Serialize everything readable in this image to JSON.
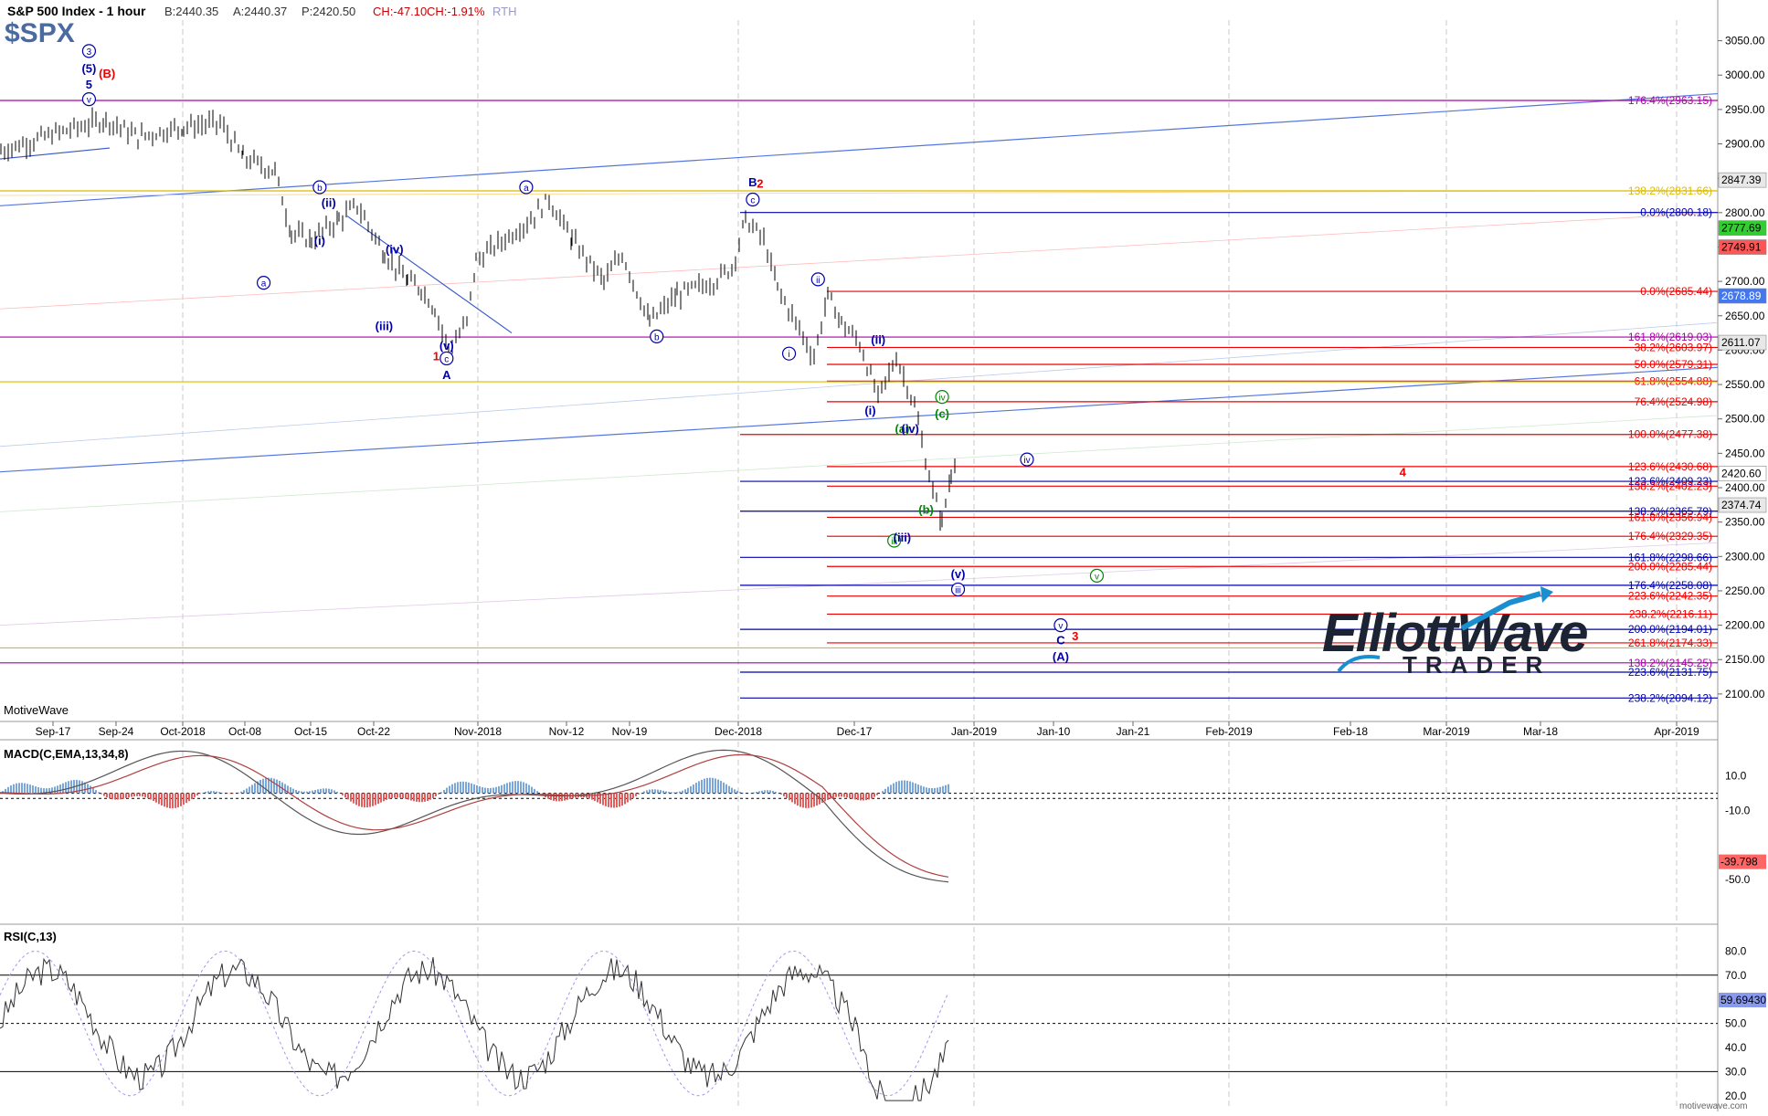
{
  "header": {
    "title": "S&P 500 Index - 1 hour",
    "symbol": "$SPX",
    "bid": "B:2440.35",
    "ask": "A:2440.37",
    "price": "P:2420.50",
    "change": "CH:-47.10",
    "change_pct": "CH:-1.91%",
    "session": "RTH"
  },
  "watermark": "MotiveWave",
  "footer_site": "motivewave.com",
  "logo": {
    "line1": "ElliottWave",
    "line2": "TRADER"
  },
  "colors": {
    "down": "#cc0000",
    "blue": "#0000aa",
    "red": "#ee0000",
    "purple": "#aa00aa",
    "gold": "#ddbb00",
    "green": "#008800",
    "bg": "#ffffff",
    "grid": "#c8c8c8"
  },
  "time_axis": [
    "Sep-17",
    "Sep-24",
    "Oct-2018",
    "Oct-08",
    "Oct-15",
    "Oct-22",
    "Nov-2018",
    "Nov-12",
    "Nov-19",
    "Dec-2018",
    "Dec-17",
    "Jan-2019",
    "Jan-10",
    "Jan-21",
    "Feb-2019",
    "Feb-18",
    "Mar-2019",
    "Mar-18",
    "Apr-2019"
  ],
  "chart_data": [
    {
      "type": "bar",
      "title": "S&P 500 Index - 1 hour",
      "ylim": [
        2060,
        3080
      ],
      "y_ticks": [
        "3050.00",
        "3000.00",
        "2950.00",
        "2900.00",
        "2850.00",
        "2800.00",
        "2750.00",
        "2700.00",
        "2650.00",
        "2600.00",
        "2550.00",
        "2500.00",
        "2450.00",
        "2400.00",
        "2350.00",
        "2300.00",
        "2250.00",
        "2200.00",
        "2150.00",
        "2100.00"
      ],
      "price_tags": [
        {
          "value": 2847.39,
          "label": "2847.39",
          "bg": "#e8e8e8",
          "fg": "#000000"
        },
        {
          "value": 2777.69,
          "label": "2777.69",
          "bg": "#33cc33",
          "fg": "#000000"
        },
        {
          "value": 2749.91,
          "label": "2749.91",
          "bg": "#ff5555",
          "fg": "#000000"
        },
        {
          "value": 2678.89,
          "label": "2678.89",
          "bg": "#4477ee",
          "fg": "#ffffff"
        },
        {
          "value": 2611.07,
          "label": "2611.07",
          "bg": "#e8e8e8",
          "fg": "#000000"
        },
        {
          "value": 2420.6,
          "label": "2420.60",
          "bg": "#ffffff",
          "fg": "#000000"
        },
        {
          "value": 2374.74,
          "label": "2374.74",
          "bg": "#e8e8e8",
          "fg": "#000000"
        }
      ],
      "fib_levels": [
        {
          "value": 2963.15,
          "label": "176.4%(2963.15)",
          "color": "#aa00aa"
        },
        {
          "value": 2831.66,
          "label": "138.2%(2831.66)",
          "color": "#ddbb00"
        },
        {
          "value": 2800.18,
          "label": "0.0%(2800.18)",
          "color": "#0000aa"
        },
        {
          "value": 2685.44,
          "label": "0.0%(2685.44)",
          "color": "#ee0000"
        },
        {
          "value": 2619.03,
          "label": "161.8%(2619.03)",
          "color": "#aa00aa"
        },
        {
          "value": 2603.97,
          "label": "38.2%(2603.97)",
          "color": "#ee0000"
        },
        {
          "value": 2579.31,
          "label": "50.0%(2579.31)",
          "color": "#ee0000"
        },
        {
          "value": 2554.88,
          "label": "61.8%(2554.88)",
          "color": "#ee0000"
        },
        {
          "value": 2524.98,
          "label": "76.4%(2524.98)",
          "color": "#ee0000"
        },
        {
          "value": 2477.38,
          "label": "100.0%(2477.38)",
          "color": "#ee0000"
        },
        {
          "value": 2430.68,
          "label": "123.6%(2430.68)",
          "color": "#ee0000"
        },
        {
          "value": 2409.23,
          "label": "123.6%(2409.23)",
          "color": "#0000aa"
        },
        {
          "value": 2402.23,
          "label": "138.2%(2402.23)",
          "color": "#ee0000"
        },
        {
          "value": 2365.79,
          "label": "138.2%(2365.79)",
          "color": "#0000aa"
        },
        {
          "value": 2356.94,
          "label": "161.8%(2356.94)",
          "color": "#ee0000"
        },
        {
          "value": 2329.35,
          "label": "176.4%(2329.35)",
          "color": "#ee0000"
        },
        {
          "value": 2298.66,
          "label": "161.8%(2298.66)",
          "color": "#0000aa"
        },
        {
          "value": 2285.44,
          "label": "200.0%(2285.44)",
          "color": "#ee0000"
        },
        {
          "value": 2258.08,
          "label": "176.4%(2258.08)",
          "color": "#0000aa"
        },
        {
          "value": 2242.35,
          "label": "223.6%(2242.35)",
          "color": "#ee0000"
        },
        {
          "value": 2216.11,
          "label": "238.2%(2216.11)",
          "color": "#ee0000"
        },
        {
          "value": 2194.01,
          "label": "200.0%(2194.01)",
          "color": "#0000aa"
        },
        {
          "value": 2174.33,
          "label": "261.8%(2174.33)",
          "color": "#ee0000"
        },
        {
          "value": 2145.25,
          "label": "138.2%(2145.25)",
          "color": "#aa00aa"
        },
        {
          "value": 2131.75,
          "label": "223.6%(2131.75)",
          "color": "#0000aa"
        },
        {
          "value": 2094.12,
          "label": "238.2%(2094.12)",
          "color": "#0000aa"
        }
      ],
      "wave_labels": [
        {
          "text": "3",
          "circled": true,
          "color": "#0000aa",
          "date": "Sep-21",
          "price": 3035
        },
        {
          "text": "(5)",
          "color": "#0000aa",
          "date": "Sep-21",
          "price": 3010
        },
        {
          "text": "(B)",
          "color": "#ee0000",
          "date": "Sep-23",
          "price": 3003
        },
        {
          "text": "5",
          "color": "#0000aa",
          "date": "Sep-21",
          "price": 2987
        },
        {
          "text": "v",
          "circled": true,
          "color": "#0000aa",
          "date": "Sep-21",
          "price": 2965
        },
        {
          "text": "b",
          "circled": true,
          "color": "#0000aa",
          "date": "Oct-16",
          "price": 2837
        },
        {
          "text": "(ii)",
          "color": "#0000aa",
          "date": "Oct-17",
          "price": 2815
        },
        {
          "text": "(i)",
          "color": "#0000aa",
          "date": "Oct-16",
          "price": 2760
        },
        {
          "text": "a",
          "circled": true,
          "color": "#0000aa",
          "date": "Oct-10",
          "price": 2698
        },
        {
          "text": "(iv)",
          "color": "#0000aa",
          "date": "Oct-24",
          "price": 2747
        },
        {
          "text": "(iii)",
          "color": "#0000aa",
          "date": "Oct-23",
          "price": 2636
        },
        {
          "text": "(v)",
          "color": "#0000aa",
          "date": "Oct-29",
          "price": 2607
        },
        {
          "text": "1",
          "color": "#ee0000",
          "date": "Oct-28",
          "price": 2592
        },
        {
          "text": "c",
          "circled": true,
          "color": "#0000aa",
          "date": "Oct-29",
          "price": 2588
        },
        {
          "text": "A",
          "color": "#0000aa",
          "date": "Oct-29",
          "price": 2565
        },
        {
          "text": "a",
          "circled": true,
          "color": "#0000aa",
          "date": "Nov-07",
          "price": 2837
        },
        {
          "text": "b",
          "circled": true,
          "color": "#0000aa",
          "date": "Nov-22",
          "price": 2620
        },
        {
          "text": "B",
          "color": "#0000aa",
          "date": "Dec-03",
          "price": 2845
        },
        {
          "text": "2",
          "color": "#ee0000",
          "date": "Dec-04",
          "price": 2843
        },
        {
          "text": "c",
          "circled": true,
          "color": "#0000aa",
          "date": "Dec-03",
          "price": 2819
        },
        {
          "text": "ii",
          "circled": true,
          "color": "#0000aa",
          "date": "Dec-12",
          "price": 2703
        },
        {
          "text": "i",
          "circled": true,
          "color": "#0000aa",
          "date": "Dec-08",
          "price": 2595
        },
        {
          "text": "(ii)",
          "color": "#0000aa",
          "date": "Dec-20",
          "price": 2616
        },
        {
          "text": "(i)",
          "color": "#0000aa",
          "date": "Dec-19",
          "price": 2513
        },
        {
          "text": "(a)",
          "color": "#008800",
          "date": "Dec-23",
          "price": 2486
        },
        {
          "text": "(iv)",
          "color": "#0000aa",
          "date": "Dec-24",
          "price": 2486
        },
        {
          "text": "iv",
          "circled": true,
          "color": "#008800",
          "date": "Dec-28",
          "price": 2532
        },
        {
          "text": "(c)",
          "color": "#008800",
          "date": "Dec-28",
          "price": 2508
        },
        {
          "text": "iv",
          "circled": true,
          "color": "#0000aa",
          "date": "Jan-07",
          "price": 2441
        },
        {
          "text": "(b)",
          "color": "#008800",
          "date": "Dec-26",
          "price": 2369
        },
        {
          "text": "iii",
          "circled": true,
          "color": "#008800",
          "date": "Dec-22",
          "price": 2323
        },
        {
          "text": "(iii)",
          "color": "#0000aa",
          "date": "Dec-23",
          "price": 2328
        },
        {
          "text": "(v)",
          "color": "#0000aa",
          "date": "Dec-30",
          "price": 2275
        },
        {
          "text": "iii",
          "circled": true,
          "color": "#0000aa",
          "date": "Dec-30",
          "price": 2252
        },
        {
          "text": "v",
          "circled": true,
          "color": "#008800",
          "date": "Jan-16",
          "price": 2272
        },
        {
          "text": "v",
          "circled": true,
          "color": "#0000aa",
          "date": "Jan-11",
          "price": 2200
        },
        {
          "text": "C",
          "color": "#0000aa",
          "date": "Jan-11",
          "price": 2179
        },
        {
          "text": "3",
          "color": "#ee0000",
          "date": "Jan-13",
          "price": 2185
        },
        {
          "text": "(A)",
          "color": "#0000aa",
          "date": "Jan-11",
          "price": 2155
        },
        {
          "text": "4",
          "color": "#ee0000",
          "date": "Feb-24",
          "price": 2423
        }
      ]
    },
    {
      "type": "bar",
      "title": "MACD(C,EMA,13,34,8)",
      "ylim": [
        -75,
        30
      ],
      "y_ticks": [
        "10.0",
        "-10.0",
        "-50.0"
      ],
      "last_value": "-39.798"
    },
    {
      "type": "line",
      "title": "RSI(C,13)",
      "ylim": [
        15,
        90
      ],
      "y_ticks": [
        "80.0",
        "70.0",
        "60.0",
        "50.0",
        "40.0",
        "30.0",
        "20.0"
      ],
      "levels": [
        70,
        50,
        30
      ],
      "last_value": "59.69430"
    }
  ]
}
